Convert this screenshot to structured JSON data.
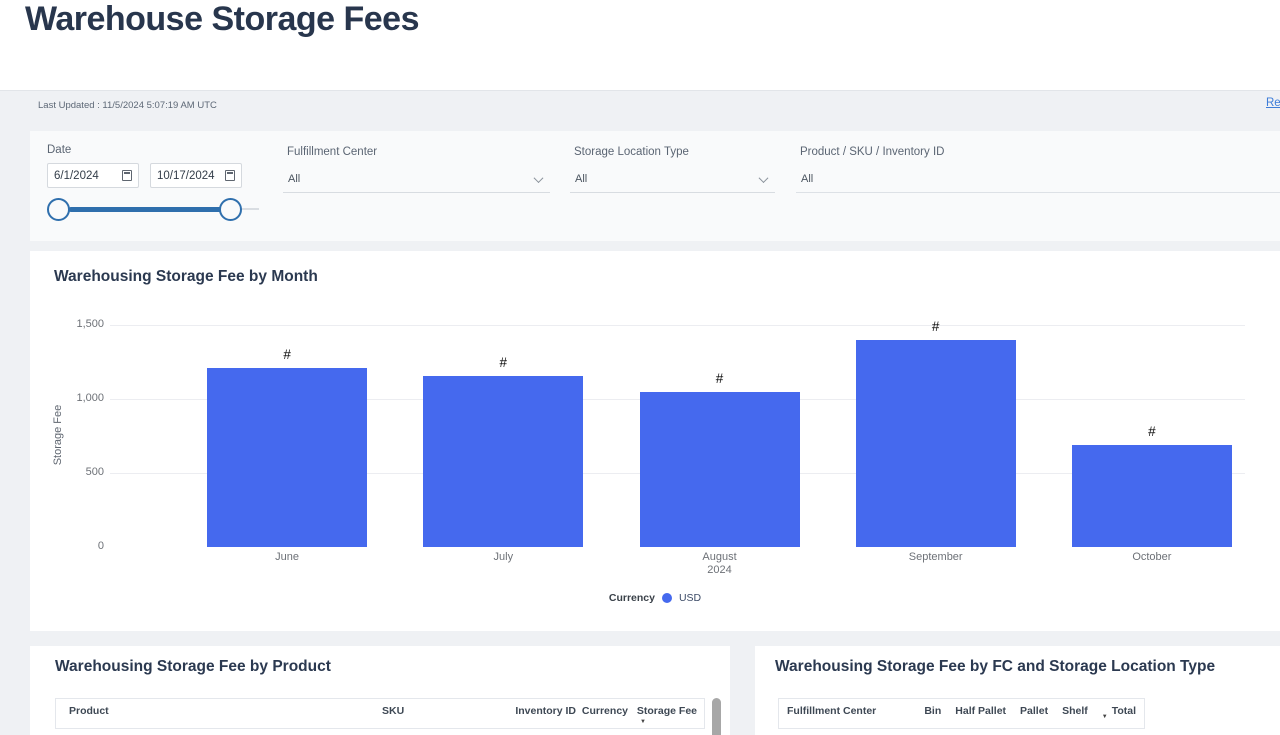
{
  "page": {
    "title": "Warehouse Storage Fees",
    "last_updated": "Last Updated : 11/5/2024 5:07:19 AM UTC",
    "reset_link": "Re"
  },
  "filters": {
    "date": {
      "label": "Date",
      "start": "6/1/2024",
      "end": "10/17/2024"
    },
    "fulfillment_center": {
      "label": "Fulfillment Center",
      "value": "All"
    },
    "storage_location_type": {
      "label": "Storage Location Type",
      "value": "All"
    },
    "product_sku_inventory": {
      "label": "Product / SKU / Inventory ID",
      "value": "All"
    }
  },
  "chart_data": {
    "type": "bar",
    "title": "Warehousing Storage Fee by Month",
    "ylabel": "Storage Fee",
    "xlabel": "",
    "categories": [
      "June",
      "July",
      "August",
      "September",
      "October"
    ],
    "category_sublabels": [
      "",
      "",
      "2024",
      "",
      ""
    ],
    "values": [
      1210,
      1155,
      1045,
      1400,
      690
    ],
    "data_labels": [
      "#",
      "#",
      "#",
      "#",
      "#"
    ],
    "ylim": [
      0,
      1500
    ],
    "yticks": [
      {
        "label": "0",
        "value": 0
      },
      {
        "label": "500",
        "value": 500
      },
      {
        "label": "1,000",
        "value": 1000
      },
      {
        "label": "1,500",
        "value": 1500
      }
    ],
    "grid": "horizontal",
    "legend_title": "Currency",
    "legend_position": "bottom",
    "series": [
      {
        "name": "USD",
        "color": "#4569ee"
      }
    ]
  },
  "product_table": {
    "title": "Warehousing Storage Fee by Product",
    "columns": [
      "Product",
      "SKU",
      "Inventory ID",
      "Currency",
      "Storage Fee"
    ],
    "sorted_column": "Storage Fee",
    "sort_direction": "descending"
  },
  "fc_table": {
    "title": "Warehousing Storage Fee by FC and Storage Location Type",
    "columns": [
      "Fulfillment Center",
      "Bin",
      "Half Pallet",
      "Pallet",
      "Shelf",
      "Total"
    ],
    "sorted_column": "Total",
    "sort_direction": "descending"
  },
  "colors": {
    "bar": "#4569ee",
    "slider": "#2f6fad",
    "link": "#3e7dd8",
    "title_text": "#28364d",
    "page_background": "#eff1f4"
  }
}
